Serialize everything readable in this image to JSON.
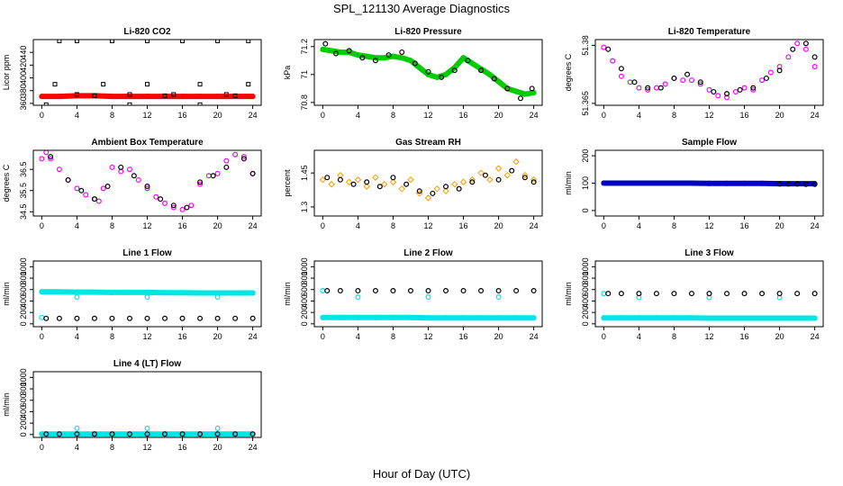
{
  "figure": {
    "title": "SPL_121130  Average Diagnostics",
    "xlabel": "Hour of Day (UTC)"
  },
  "chart_data": [
    {
      "type": "scatter",
      "title": "Li-820 CO2",
      "ylabel": "Licor ppm",
      "xlim": [
        0,
        24
      ],
      "ylim": [
        357,
        460
      ],
      "xticks": [
        0,
        4,
        8,
        12,
        16,
        20,
        24
      ],
      "yticks": [
        360,
        380,
        400,
        420,
        440
      ],
      "series": [
        {
          "color": "#ff0000",
          "marker": "filled",
          "x": [
            0,
            2,
            4,
            6,
            8,
            10,
            12,
            14,
            16,
            18,
            20,
            22,
            24
          ],
          "y": [
            371,
            371,
            372,
            372,
            371,
            371,
            371,
            371,
            371,
            371,
            371,
            371,
            371
          ]
        },
        {
          "color": "#000000",
          "marker": "square",
          "x": [
            0.5,
            2,
            4,
            6,
            8,
            10,
            12,
            14,
            16,
            18,
            20,
            22,
            23.5
          ],
          "y": [
            358,
            458,
            458,
            372,
            458,
            358,
            458,
            372,
            458,
            358,
            458,
            372,
            458
          ]
        },
        {
          "color": "#000000",
          "marker": "square",
          "x": [
            1.5,
            4,
            7,
            10,
            12,
            15,
            18,
            21,
            23.5
          ],
          "y": [
            390,
            374,
            390,
            374,
            390,
            374,
            390,
            374,
            390
          ]
        }
      ]
    },
    {
      "type": "scatter",
      "title": "Li-820 Pressure",
      "ylabel": "kPa",
      "xlim": [
        0,
        24
      ],
      "ylim": [
        70.78,
        71.25
      ],
      "xticks": [
        0,
        4,
        8,
        12,
        16,
        20,
        24
      ],
      "yticks": [
        70.8,
        71.0,
        71.2
      ],
      "series": [
        {
          "color": "#00cc00",
          "marker": "filled",
          "x": [
            0,
            1,
            2,
            3,
            4,
            5,
            6,
            7,
            8,
            9,
            10,
            11,
            12,
            13,
            14,
            15,
            16,
            17,
            18,
            19,
            20,
            21,
            22,
            23,
            24
          ],
          "y": [
            71.18,
            71.17,
            71.16,
            71.16,
            71.14,
            71.13,
            71.12,
            71.12,
            71.13,
            71.12,
            71.1,
            71.05,
            71.0,
            70.98,
            71.0,
            71.05,
            71.12,
            71.08,
            71.04,
            71.0,
            70.95,
            70.9,
            70.88,
            70.86,
            70.87
          ]
        },
        {
          "color": "#000000",
          "marker": "circle",
          "x": [
            0.3,
            1.5,
            3,
            4.5,
            6,
            7.5,
            9,
            10.5,
            12,
            13.5,
            15,
            16.5,
            18,
            19.5,
            21,
            22.5,
            23.8
          ],
          "y": [
            71.22,
            71.15,
            71.17,
            71.12,
            71.1,
            71.14,
            71.16,
            71.08,
            71.02,
            70.98,
            71.03,
            71.1,
            71.03,
            70.97,
            70.9,
            70.83,
            70.9
          ]
        }
      ]
    },
    {
      "type": "scatter",
      "title": "Li-820 Temperature",
      "ylabel": "degrees C",
      "xlim": [
        0,
        24
      ],
      "ylim": [
        51.3645,
        51.3815
      ],
      "xticks": [
        0,
        4,
        8,
        12,
        16,
        20,
        24
      ],
      "yticks": [
        51.365,
        51.38
      ],
      "series": [
        {
          "color": "#ff00ff",
          "marker": "circle",
          "x": [
            0,
            1,
            2,
            3,
            4,
            5,
            6,
            7,
            8,
            9,
            10,
            11,
            12,
            13,
            14,
            15,
            16,
            17,
            18,
            19,
            20,
            21,
            22,
            23,
            24
          ],
          "y": [
            51.3795,
            51.376,
            51.372,
            51.3705,
            51.369,
            51.3685,
            51.369,
            51.37,
            51.3715,
            51.371,
            51.371,
            51.37,
            51.3685,
            51.367,
            51.3665,
            51.368,
            51.369,
            51.3685,
            51.371,
            51.373,
            51.3745,
            51.377,
            51.3805,
            51.379,
            51.3745
          ]
        },
        {
          "color": "#000000",
          "marker": "circle",
          "x": [
            0.5,
            2,
            3.5,
            5,
            6.5,
            8,
            9.5,
            11,
            12.5,
            14,
            15.5,
            17,
            18.5,
            20,
            21.5,
            23,
            24
          ],
          "y": [
            51.379,
            51.374,
            51.3705,
            51.369,
            51.369,
            51.3715,
            51.3725,
            51.3705,
            51.368,
            51.3675,
            51.3685,
            51.369,
            51.3715,
            51.3735,
            51.379,
            51.3805,
            51.377
          ]
        }
      ]
    },
    {
      "type": "scatter",
      "title": "Ambient Box Temperature",
      "ylabel": "degrees C",
      "xlim": [
        0,
        24
      ],
      "ylim": [
        34.3,
        37.4
      ],
      "xticks": [
        0,
        4,
        8,
        12,
        16,
        20,
        24
      ],
      "yticks": [
        34.5,
        35.5,
        36.5
      ],
      "series": [
        {
          "color": "#ff00ff",
          "marker": "circle",
          "x": [
            0,
            0.5,
            1,
            2,
            3,
            4,
            5,
            6,
            6.5,
            7,
            8,
            9,
            10,
            11,
            12,
            13,
            14,
            15,
            16,
            17,
            18,
            19,
            20,
            21,
            22,
            23,
            24
          ],
          "y": [
            37.0,
            37.3,
            37.0,
            36.5,
            36.0,
            35.6,
            35.3,
            35.1,
            35.0,
            35.6,
            36.6,
            36.4,
            36.5,
            36.0,
            35.6,
            35.2,
            34.9,
            34.7,
            34.6,
            34.8,
            35.8,
            36.2,
            36.3,
            36.9,
            37.2,
            37.1,
            36.3
          ]
        },
        {
          "color": "#000000",
          "marker": "circle",
          "x": [
            1,
            3,
            4.5,
            6,
            7.5,
            9,
            10.5,
            12,
            13.5,
            15,
            16.5,
            18,
            19.5,
            21,
            23,
            24
          ],
          "y": [
            37.1,
            36.0,
            35.5,
            35.1,
            35.7,
            36.6,
            36.2,
            35.7,
            35.1,
            34.8,
            34.7,
            35.9,
            36.2,
            36.6,
            37.0,
            36.3
          ]
        }
      ]
    },
    {
      "type": "scatter",
      "title": "Gas Stream RH",
      "ylabel": "percent",
      "xlim": [
        0,
        24
      ],
      "ylim": [
        1.26,
        1.55
      ],
      "xticks": [
        0,
        4,
        8,
        12,
        16,
        20,
        24
      ],
      "yticks": [
        1.3,
        1.45
      ],
      "series": [
        {
          "color": "#ff9900",
          "marker": "diamond",
          "x": [
            0,
            1,
            2,
            3,
            4,
            5,
            6,
            7,
            8,
            9,
            10,
            11,
            12,
            13,
            14,
            15,
            16,
            17,
            18,
            19,
            20,
            21,
            22,
            23,
            24
          ],
          "y": [
            1.42,
            1.4,
            1.44,
            1.41,
            1.42,
            1.39,
            1.43,
            1.4,
            1.41,
            1.38,
            1.42,
            1.36,
            1.34,
            1.38,
            1.37,
            1.4,
            1.41,
            1.42,
            1.45,
            1.42,
            1.47,
            1.44,
            1.5,
            1.44,
            1.42
          ]
        },
        {
          "color": "#000000",
          "marker": "circle",
          "x": [
            0.5,
            2,
            3.5,
            5,
            6.5,
            8,
            9.5,
            11,
            12.5,
            14,
            15.5,
            17,
            18.5,
            20,
            21.5,
            23,
            24
          ],
          "y": [
            1.43,
            1.42,
            1.4,
            1.41,
            1.39,
            1.43,
            1.4,
            1.37,
            1.36,
            1.39,
            1.38,
            1.41,
            1.44,
            1.42,
            1.46,
            1.43,
            1.41
          ]
        }
      ]
    },
    {
      "type": "scatter",
      "title": "Sample Flow",
      "ylabel": "ml/min",
      "xlim": [
        0,
        24
      ],
      "ylim": [
        -20,
        220
      ],
      "xticks": [
        0,
        4,
        8,
        12,
        16,
        20,
        24
      ],
      "yticks": [
        0,
        100,
        200
      ],
      "series": [
        {
          "color": "#0000cc",
          "marker": "filled",
          "x": [
            0,
            2,
            4,
            6,
            8,
            10,
            12,
            14,
            16,
            18,
            20,
            22,
            24
          ],
          "y": [
            100,
            100,
            100,
            100,
            100,
            100,
            99,
            99,
            99,
            99,
            98,
            98,
            98
          ]
        },
        {
          "color": "#000000",
          "marker": "circle",
          "x": [
            20,
            21,
            22,
            23,
            24
          ],
          "y": [
            97,
            97,
            97,
            96,
            96
          ]
        }
      ]
    },
    {
      "type": "scatter",
      "title": "Line 1 Flow",
      "ylabel": "ml/min",
      "xlim": [
        0,
        24
      ],
      "ylim": [
        -50,
        1100
      ],
      "xticks": [
        0,
        4,
        8,
        12,
        16,
        20,
        24
      ],
      "yticks": [
        0,
        200,
        400,
        600,
        800,
        1000
      ],
      "series": [
        {
          "color": "#00e5e5",
          "marker": "filled",
          "x": [
            0,
            2,
            4,
            6,
            8,
            10,
            12,
            14,
            16,
            18,
            20,
            22,
            24
          ],
          "y": [
            560,
            560,
            555,
            555,
            550,
            550,
            550,
            545,
            545,
            540,
            540,
            540,
            540
          ]
        },
        {
          "color": "#00e5e5",
          "marker": "circle",
          "x": [
            0,
            4,
            12,
            20
          ],
          "y": [
            110,
            470,
            470,
            470
          ]
        },
        {
          "color": "#000000",
          "marker": "circle",
          "x": [
            0.5,
            2,
            4,
            6,
            8,
            10,
            12,
            14,
            16,
            18,
            20,
            22,
            24
          ],
          "y": [
            95,
            95,
            95,
            95,
            95,
            95,
            95,
            95,
            95,
            95,
            95,
            95,
            95
          ]
        }
      ]
    },
    {
      "type": "scatter",
      "title": "Line 2 Flow",
      "ylabel": "ml/min",
      "xlim": [
        0,
        24
      ],
      "ylim": [
        -50,
        1100
      ],
      "xticks": [
        0,
        4,
        8,
        12,
        16,
        20,
        24
      ],
      "yticks": [
        0,
        200,
        400,
        600,
        800,
        1000
      ],
      "series": [
        {
          "color": "#00e5e5",
          "marker": "filled",
          "x": [
            0,
            2,
            4,
            6,
            8,
            10,
            12,
            14,
            16,
            18,
            20,
            22,
            24
          ],
          "y": [
            110,
            110,
            110,
            110,
            110,
            110,
            105,
            105,
            105,
            105,
            105,
            105,
            105
          ]
        },
        {
          "color": "#00e5e5",
          "marker": "circle",
          "x": [
            0,
            4,
            12,
            20
          ],
          "y": [
            580,
            470,
            470,
            470
          ]
        },
        {
          "color": "#000000",
          "marker": "circle",
          "x": [
            0.5,
            2,
            4,
            6,
            8,
            10,
            12,
            14,
            16,
            18,
            20,
            22,
            24
          ],
          "y": [
            580,
            580,
            580,
            580,
            580,
            580,
            580,
            580,
            580,
            580,
            580,
            580,
            580
          ]
        }
      ]
    },
    {
      "type": "scatter",
      "title": "Line 3 Flow",
      "ylabel": "ml/min",
      "xlim": [
        0,
        24
      ],
      "ylim": [
        -50,
        1100
      ],
      "xticks": [
        0,
        4,
        8,
        12,
        16,
        20,
        24
      ],
      "yticks": [
        0,
        200,
        400,
        600,
        800,
        1000
      ],
      "series": [
        {
          "color": "#00e5e5",
          "marker": "filled",
          "x": [
            0,
            2,
            4,
            6,
            8,
            10,
            12,
            14,
            16,
            18,
            20,
            22,
            24
          ],
          "y": [
            105,
            105,
            105,
            105,
            105,
            105,
            100,
            100,
            100,
            100,
            100,
            100,
            100
          ]
        },
        {
          "color": "#00e5e5",
          "marker": "circle",
          "x": [
            0,
            4,
            12,
            20
          ],
          "y": [
            530,
            460,
            460,
            460
          ]
        },
        {
          "color": "#000000",
          "marker": "circle",
          "x": [
            0.5,
            2,
            4,
            6,
            8,
            10,
            12,
            14,
            16,
            18,
            20,
            22,
            24
          ],
          "y": [
            530,
            530,
            530,
            530,
            530,
            530,
            530,
            530,
            530,
            530,
            530,
            530,
            530
          ]
        }
      ]
    },
    {
      "type": "scatter",
      "title": "Line 4 (LT) Flow",
      "ylabel": "ml/min",
      "xlim": [
        0,
        24
      ],
      "ylim": [
        -50,
        1100
      ],
      "xticks": [
        0,
        4,
        8,
        12,
        16,
        20,
        24
      ],
      "yticks": [
        0,
        200,
        400,
        600,
        800,
        1000
      ],
      "series": [
        {
          "color": "#00e5e5",
          "marker": "filled",
          "x": [
            0,
            2,
            4,
            6,
            8,
            10,
            12,
            14,
            16,
            18,
            20,
            22,
            24
          ],
          "y": [
            10,
            10,
            10,
            10,
            10,
            10,
            10,
            10,
            10,
            10,
            10,
            10,
            10
          ]
        },
        {
          "color": "#00e5e5",
          "marker": "circle",
          "x": [
            0,
            4,
            12,
            20
          ],
          "y": [
            10,
            110,
            110,
            110
          ]
        },
        {
          "color": "#000000",
          "marker": "circle",
          "x": [
            0.5,
            2,
            4,
            6,
            8,
            10,
            12,
            14,
            16,
            18,
            20,
            22,
            24
          ],
          "y": [
            10,
            10,
            10,
            10,
            10,
            10,
            10,
            10,
            10,
            10,
            10,
            10,
            10
          ]
        }
      ]
    }
  ]
}
